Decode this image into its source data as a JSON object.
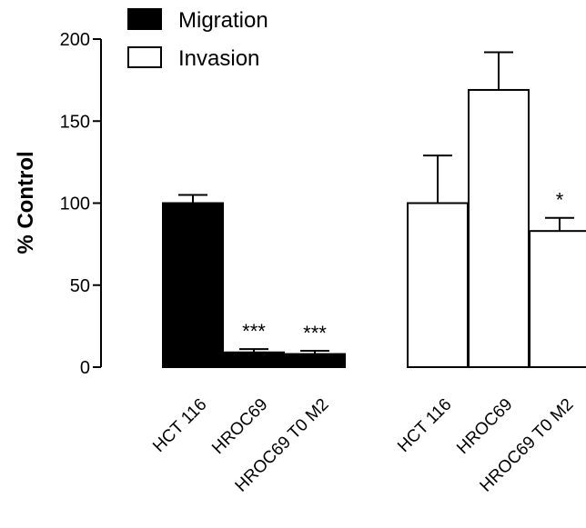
{
  "chart_data": {
    "type": "bar",
    "title": "",
    "xlabel": "",
    "ylabel": "% Control",
    "ylim": [
      0,
      200
    ],
    "yticks": [
      0,
      50,
      100,
      150,
      200
    ],
    "grid": false,
    "legend_position": "top-left",
    "series": [
      {
        "name": "Migration",
        "fill": "#000000",
        "categories": [
          "HCT 116",
          "HROC69",
          "HROC69 T0 M2"
        ],
        "values": [
          100,
          9,
          8
        ],
        "errors": [
          5,
          2,
          2
        ],
        "annotations": [
          "",
          "***",
          "***"
        ]
      },
      {
        "name": "Invasion",
        "fill": "#ffffff",
        "categories": [
          "HCT 116",
          "HROC69",
          "HROC69 T0 M2"
        ],
        "values": [
          100,
          169,
          83
        ],
        "errors": [
          29,
          23,
          8
        ],
        "annotations": [
          "",
          "",
          "*"
        ]
      }
    ]
  }
}
